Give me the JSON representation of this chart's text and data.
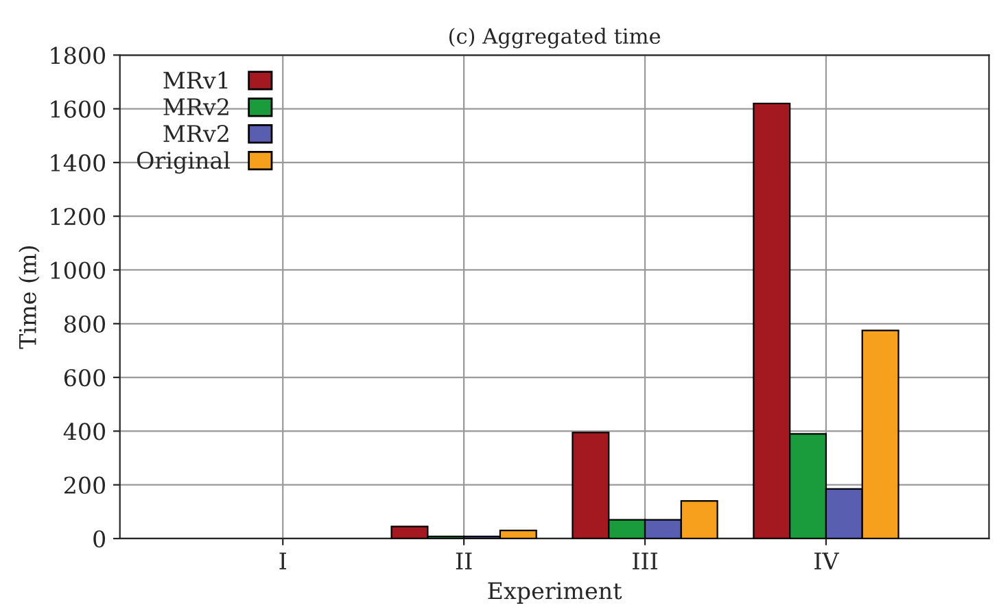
{
  "chart_data": {
    "type": "bar",
    "title": "(c) Aggregated time",
    "xlabel": "Experiment",
    "ylabel": "Time (m)",
    "categories": [
      "I",
      "II",
      "III",
      "IV"
    ],
    "series": [
      {
        "name": "MRv1",
        "color": "#a3191f",
        "values": [
          null,
          45,
          395,
          1620
        ]
      },
      {
        "name": "MRv2",
        "color": "#1a9b3c",
        "values": [
          null,
          8,
          70,
          390
        ]
      },
      {
        "name": "MRv2",
        "color": "#5a5eb0",
        "values": [
          null,
          8,
          70,
          185
        ]
      },
      {
        "name": "Original",
        "color": "#f7a01e",
        "values": [
          null,
          30,
          140,
          775
        ]
      }
    ],
    "ylim": [
      0,
      1800
    ],
    "yticks": [
      0,
      200,
      400,
      600,
      800,
      1000,
      1200,
      1400,
      1600,
      1800
    ],
    "grid": true,
    "legend": "top left"
  }
}
